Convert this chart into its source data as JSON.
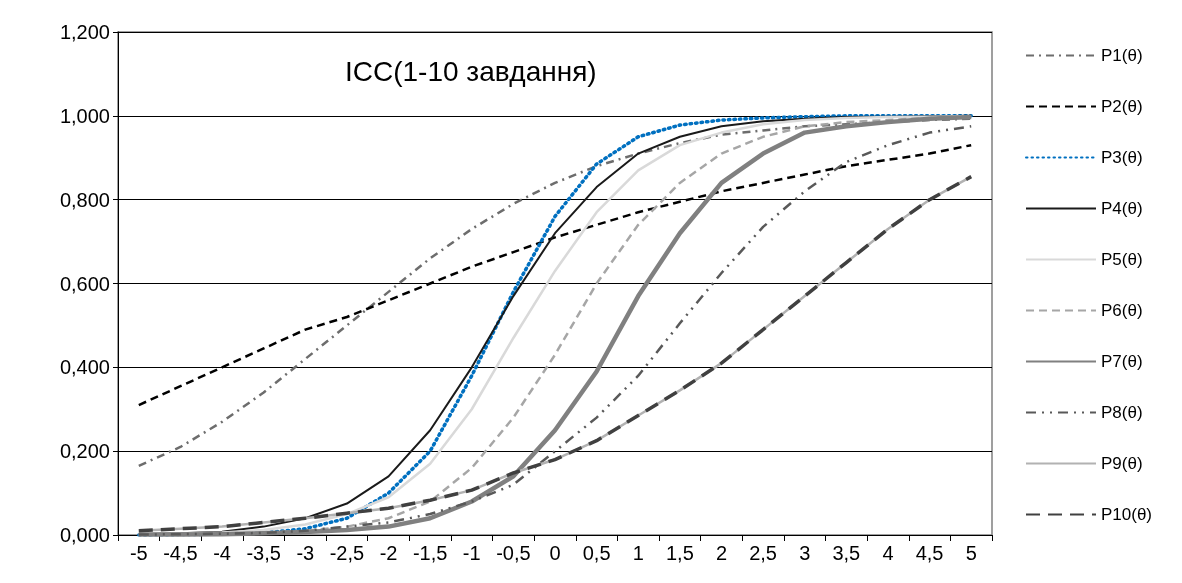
{
  "chart_data": {
    "type": "line",
    "title": "ICC(1-10 завдання)",
    "categories": [
      "-5",
      "-4,5",
      "-4",
      "-3,5",
      "-3",
      "-2,5",
      "-2",
      "-1,5",
      "-1",
      "-0,5",
      "0",
      "0,5",
      "1",
      "1,5",
      "2",
      "2,5",
      "3",
      "3,5",
      "4",
      "4,5",
      "5"
    ],
    "ylim": [
      0,
      1.2
    ],
    "yticks": [
      {
        "value": 0,
        "label": "0,000"
      },
      {
        "value": 0.2,
        "label": "0,200"
      },
      {
        "value": 0.4,
        "label": "0,400"
      },
      {
        "value": 0.6,
        "label": "0,600"
      },
      {
        "value": 0.8,
        "label": "0,800"
      },
      {
        "value": 1,
        "label": "1,000"
      },
      {
        "value": 1.2,
        "label": "1,200"
      }
    ],
    "grid": "y",
    "legend": "right",
    "marker": "none",
    "series": [
      {
        "name": "P1(θ)",
        "color": "#6d6d6d",
        "line_style": "dashed",
        "values": [
          0.165,
          0.21,
          0.27,
          0.34,
          0.42,
          0.5,
          0.58,
          0.66,
          0.73,
          0.79,
          0.84,
          0.88,
          0.91,
          0.935,
          0.955,
          0.965,
          0.975,
          0.98,
          0.985,
          0.99,
          0.993
        ]
      },
      {
        "name": "P2(θ)",
        "color": "#000000",
        "line_style": "dashed",
        "values": [
          0.31,
          0.355,
          0.4,
          0.445,
          0.49,
          0.52,
          0.56,
          0.6,
          0.64,
          0.675,
          0.71,
          0.74,
          0.77,
          0.795,
          0.82,
          0.84,
          0.86,
          0.88,
          0.895,
          0.91,
          0.93
        ]
      },
      {
        "name": "P3(θ)",
        "color": "#0070c0",
        "line_style": "dotted",
        "values": [
          0,
          0.001,
          0.002,
          0.005,
          0.015,
          0.04,
          0.1,
          0.2,
          0.38,
          0.58,
          0.76,
          0.885,
          0.95,
          0.978,
          0.99,
          0.995,
          0.998,
          1,
          1,
          1,
          1
        ]
      },
      {
        "name": "P4(θ)",
        "color": "#1a1a1a",
        "line_style": "solid",
        "values": [
          0.002,
          0.004,
          0.008,
          0.02,
          0.04,
          0.075,
          0.14,
          0.25,
          0.4,
          0.57,
          0.72,
          0.83,
          0.91,
          0.95,
          0.975,
          0.987,
          0.993,
          0.997,
          0.998,
          0.999,
          1
        ]
      },
      {
        "name": "P5(θ)",
        "color": "#d9d9d9",
        "line_style": "solid",
        "values": [
          0.002,
          0.003,
          0.006,
          0.012,
          0.025,
          0.05,
          0.09,
          0.17,
          0.3,
          0.47,
          0.63,
          0.77,
          0.87,
          0.93,
          0.96,
          0.98,
          0.99,
          0.995,
          0.997,
          0.998,
          0.999
        ]
      },
      {
        "name": "P6(θ)",
        "color": "#a6a6a6",
        "line_style": "dashed",
        "values": [
          0.001,
          0.002,
          0.004,
          0.006,
          0.01,
          0.02,
          0.04,
          0.08,
          0.16,
          0.28,
          0.43,
          0.6,
          0.74,
          0.84,
          0.91,
          0.95,
          0.975,
          0.985,
          0.99,
          0.995,
          0.997
        ]
      },
      {
        "name": "P7(θ)",
        "color": "#808080",
        "line_style": "solid",
        "values": [
          0.001,
          0.001,
          0.002,
          0.004,
          0.007,
          0.012,
          0.02,
          0.04,
          0.08,
          0.14,
          0.25,
          0.39,
          0.57,
          0.72,
          0.84,
          0.91,
          0.96,
          0.975,
          0.985,
          0.993,
          0.997
        ]
      },
      {
        "name": "P8(θ)",
        "color": "#595959",
        "line_style": "dashed",
        "values": [
          0.001,
          0.002,
          0.003,
          0.005,
          0.01,
          0.02,
          0.03,
          0.05,
          0.08,
          0.12,
          0.2,
          0.28,
          0.38,
          0.505,
          0.625,
          0.735,
          0.82,
          0.89,
          0.93,
          0.96,
          0.975
        ]
      },
      {
        "name": "P9(θ)",
        "color": "#b2b2b2",
        "line_style": "solid",
        "values": [
          0.01,
          0.015,
          0.02,
          0.03,
          0.04,
          0.052,
          0.064,
          0.083,
          0.107,
          0.148,
          0.18,
          0.225,
          0.285,
          0.345,
          0.41,
          0.49,
          0.57,
          0.65,
          0.73,
          0.8,
          0.855
        ]
      },
      {
        "name": "P10(θ)",
        "color": "#404040",
        "line_style": "dashed",
        "values": [
          0.01,
          0.015,
          0.02,
          0.03,
          0.04,
          0.052,
          0.064,
          0.083,
          0.107,
          0.148,
          0.18,
          0.225,
          0.285,
          0.345,
          0.41,
          0.49,
          0.57,
          0.65,
          0.73,
          0.8,
          0.855
        ]
      }
    ]
  }
}
